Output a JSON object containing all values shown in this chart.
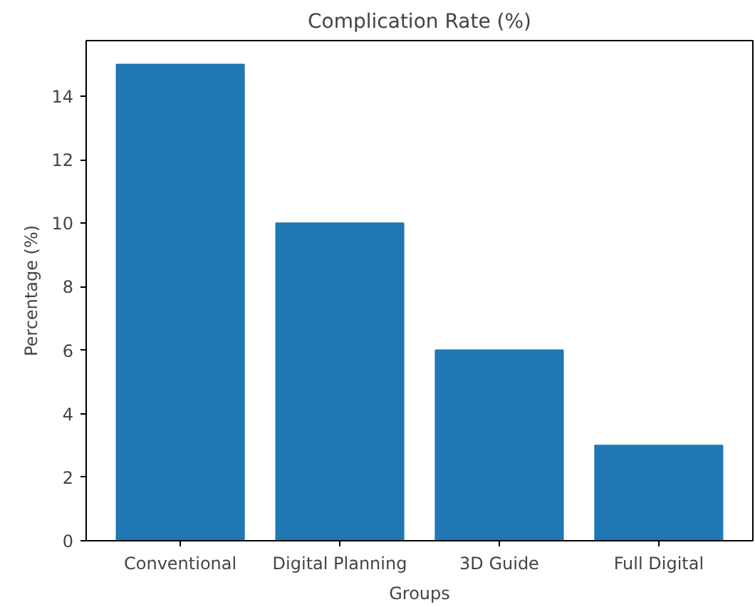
{
  "chart_data": {
    "type": "bar",
    "title": "Complication Rate (%)",
    "xlabel": "Groups",
    "ylabel": "Percentage (%)",
    "categories": [
      "Conventional",
      "Digital Planning",
      "3D Guide",
      "Full Digital"
    ],
    "values": [
      15,
      10,
      6,
      3
    ],
    "color": "#1f77b4",
    "ylim": [
      0,
      15.75
    ],
    "yticks": [
      0,
      2,
      4,
      6,
      8,
      10,
      12,
      14
    ],
    "grid": false
  }
}
